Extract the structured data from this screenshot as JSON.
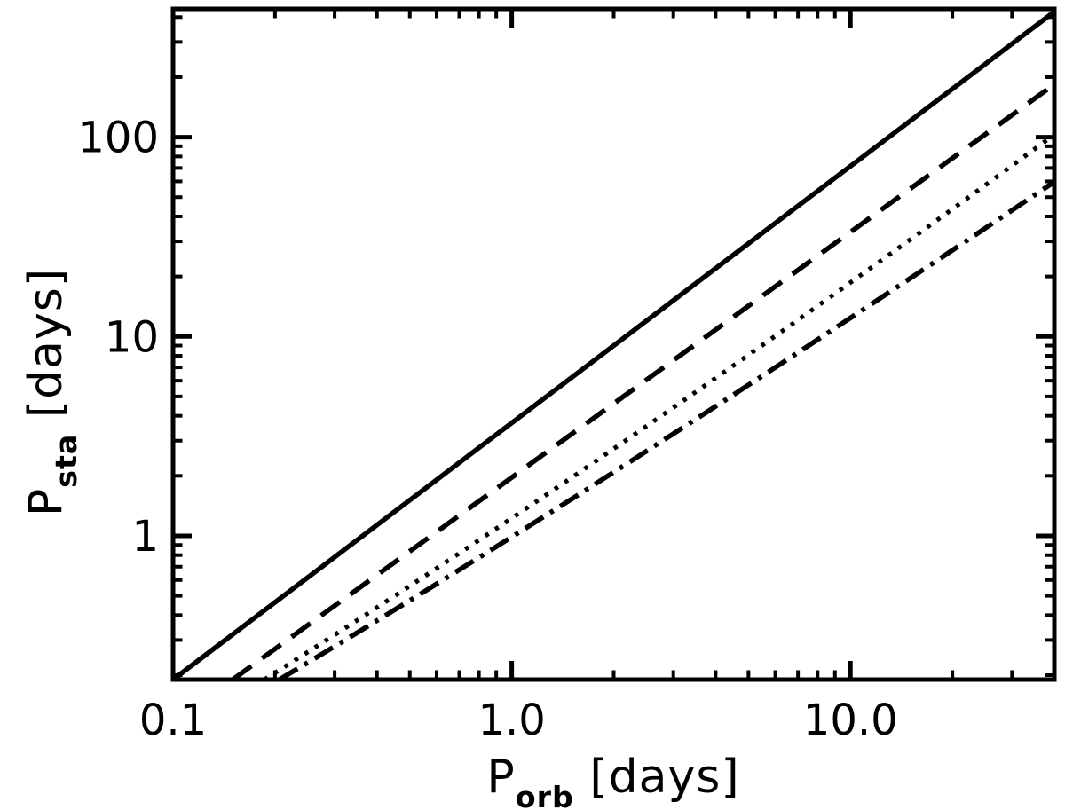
{
  "figure": {
    "background_color": "#ffffff",
    "line_color": "#000000"
  },
  "chart_data": {
    "type": "line",
    "title": "",
    "xlabel": {
      "prefix": "P",
      "sub": "orb",
      "suffix": " [days]"
    },
    "ylabel": {
      "prefix": "P",
      "sub": "sta",
      "suffix": " [days]"
    },
    "x_scale": "log",
    "y_scale": "log",
    "xlim": [
      0.1,
      40
    ],
    "ylim": [
      0.19,
      440
    ],
    "x_major_ticks": [
      0.1,
      1,
      10
    ],
    "x_major_labels": [
      "0.1",
      "1.0",
      "10.0"
    ],
    "y_major_ticks": [
      1,
      10,
      100
    ],
    "y_major_labels": [
      "1",
      "10",
      "100"
    ],
    "grid": false,
    "legend": null,
    "series": [
      {
        "name": "solid",
        "style": "solid",
        "approx_relation": "P_sta ~ 3.7 * P_orb^1.29",
        "points": [
          [
            0.1,
            0.19
          ],
          [
            40,
            426
          ]
        ]
      },
      {
        "name": "dashed",
        "style": "dashed",
        "approx_relation": "P_sta ~ 2.0 * P_orb^1.24",
        "points": [
          [
            0.15,
            0.19
          ],
          [
            40,
            184
          ]
        ]
      },
      {
        "name": "dotted",
        "style": "dotted",
        "approx_relation": "P_sta ~ 1.4 * P_orb^1.18",
        "points": [
          [
            0.186,
            0.19
          ],
          [
            2.24,
            3.12
          ],
          [
            40,
            103
          ]
        ]
      },
      {
        "name": "dash-dot",
        "style": "dashdot",
        "approx_relation": "P_sta ~ 1.05 * P_orb^1.10",
        "points": [
          [
            0.206,
            0.19
          ],
          [
            2.24,
            2.36
          ],
          [
            40,
            59.7
          ]
        ]
      }
    ]
  }
}
